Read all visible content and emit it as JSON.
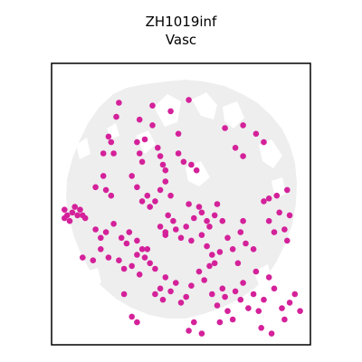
{
  "chart_data": {
    "type": "scatter",
    "title": "ZH1019inf",
    "subtitle": "Vasc",
    "xlabel": "",
    "ylabel": "",
    "xlim": [
      0,
      100
    ],
    "ylim": [
      0,
      100
    ],
    "grid": false,
    "legend": "none",
    "background_color": "#eeeeee",
    "highlight_color": "#d4219a",
    "series": [
      {
        "points": [
          [
            25,
            81
          ],
          [
            26,
            86
          ],
          [
            34,
            80
          ],
          [
            39,
            85
          ],
          [
            39,
            78
          ],
          [
            46,
            83
          ],
          [
            53,
            87
          ],
          [
            49,
            75
          ],
          [
            67,
            77
          ],
          [
            74,
            78
          ],
          [
            71,
            70
          ],
          [
            74,
            67
          ],
          [
            79,
            75
          ],
          [
            82,
            72
          ],
          [
            22,
            74
          ],
          [
            23,
            72
          ],
          [
            24,
            68
          ],
          [
            20,
            68
          ],
          [
            33,
            72
          ],
          [
            34,
            68
          ],
          [
            35,
            65
          ],
          [
            36,
            73
          ],
          [
            41,
            70
          ],
          [
            42,
            67
          ],
          [
            43,
            64
          ],
          [
            49,
            68
          ],
          [
            51,
            65
          ],
          [
            54,
            64
          ],
          [
            56,
            62
          ],
          [
            44,
            62
          ],
          [
            17,
            56
          ],
          [
            20,
            60
          ],
          [
            21,
            55
          ],
          [
            23,
            53
          ],
          [
            31,
            60
          ],
          [
            33,
            56
          ],
          [
            35,
            51
          ],
          [
            37,
            53
          ],
          [
            38,
            49
          ],
          [
            40,
            51
          ],
          [
            42,
            55
          ],
          [
            44,
            58
          ],
          [
            46,
            53
          ],
          [
            53,
            50
          ],
          [
            55,
            45
          ],
          [
            58,
            47
          ],
          [
            60,
            44
          ],
          [
            61,
            42
          ],
          [
            64,
            50
          ],
          [
            63,
            46
          ],
          [
            66,
            44
          ],
          [
            48,
            41
          ],
          [
            50,
            38
          ],
          [
            52,
            42
          ],
          [
            54,
            37
          ],
          [
            5,
            48
          ],
          [
            6,
            46
          ],
          [
            8,
            47
          ],
          [
            9,
            49
          ],
          [
            10,
            46
          ],
          [
            11,
            48
          ],
          [
            12,
            46
          ],
          [
            13,
            45
          ],
          [
            5,
            45
          ],
          [
            7,
            44
          ],
          [
            17,
            41
          ],
          [
            19,
            38
          ],
          [
            21,
            40
          ],
          [
            24,
            43
          ],
          [
            27,
            38
          ],
          [
            29,
            36
          ],
          [
            30,
            40
          ],
          [
            33,
            37
          ],
          [
            35,
            34
          ],
          [
            36,
            31
          ],
          [
            37,
            34
          ],
          [
            42,
            42
          ],
          [
            44,
            39
          ],
          [
            45,
            46
          ],
          [
            47,
            44
          ],
          [
            57,
            49
          ],
          [
            58,
            39
          ],
          [
            60,
            35
          ],
          [
            62,
            32
          ],
          [
            63,
            29
          ],
          [
            65,
            33
          ],
          [
            68,
            38
          ],
          [
            70,
            34
          ],
          [
            72,
            29
          ],
          [
            73,
            40
          ],
          [
            74,
            44
          ],
          [
            75,
            36
          ],
          [
            78,
            34
          ],
          [
            82,
            51
          ],
          [
            84,
            52
          ],
          [
            87,
            53
          ],
          [
            88,
            47
          ],
          [
            91,
            55
          ],
          [
            84,
            44
          ],
          [
            86,
            40
          ],
          [
            90,
            41
          ],
          [
            92,
            46
          ],
          [
            91,
            37
          ],
          [
            12,
            31
          ],
          [
            16,
            30
          ],
          [
            19,
            34
          ],
          [
            22,
            31
          ],
          [
            26,
            30
          ],
          [
            28,
            27
          ],
          [
            31,
            28
          ],
          [
            33,
            32
          ],
          [
            34,
            25
          ],
          [
            38,
            29
          ],
          [
            40,
            27
          ],
          [
            44,
            24
          ],
          [
            42,
            20
          ],
          [
            40,
            18
          ],
          [
            43,
            16
          ],
          [
            46,
            19
          ],
          [
            48,
            22
          ],
          [
            50,
            15
          ],
          [
            52,
            17
          ],
          [
            54,
            21
          ],
          [
            57,
            26
          ],
          [
            59,
            23
          ],
          [
            61,
            28
          ],
          [
            62,
            18
          ],
          [
            64,
            14
          ],
          [
            66,
            20
          ],
          [
            67,
            17
          ],
          [
            68,
            12
          ],
          [
            70,
            9
          ],
          [
            71,
            19
          ],
          [
            73,
            16
          ],
          [
            74,
            22
          ],
          [
            76,
            13
          ],
          [
            78,
            18
          ],
          [
            80,
            12
          ],
          [
            82,
            16
          ],
          [
            84,
            24
          ],
          [
            86,
            20
          ],
          [
            89,
            13
          ],
          [
            90,
            9
          ],
          [
            92,
            15
          ],
          [
            94,
            18
          ],
          [
            96,
            12
          ],
          [
            28,
            18
          ],
          [
            31,
            10
          ],
          [
            33,
            8
          ],
          [
            53,
            5
          ],
          [
            55,
            8
          ],
          [
            58,
            4
          ],
          [
            65,
            8
          ],
          [
            79,
            26
          ],
          [
            81,
            6
          ],
          [
            85,
            4
          ],
          [
            44,
            40
          ]
        ]
      }
    ]
  }
}
